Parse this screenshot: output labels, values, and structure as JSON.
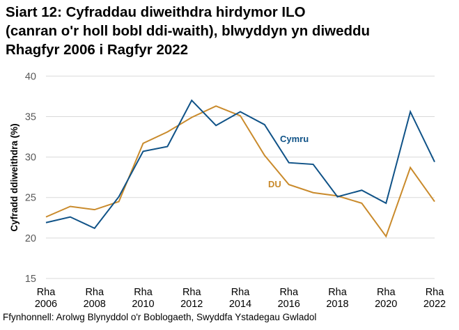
{
  "title": "Siart 12: Cyfraddau diweithdra hirdymor ILO\n(canran o'r holl bobl ddi-waith), blwyddyn yn diweddu\nRhagfyr 2006 i Ragfyr 2022",
  "source": "Ffynhonnell: Arolwg Blynyddol o'r Boblogaeth, Swyddfa Ystadegau Gwladol",
  "chart_data": {
    "type": "line",
    "title": "Siart 12: Cyfraddau diweithdra hirdymor ILO (canran o'r holl bobl ddi-waith), blwyddyn yn diweddu Rhagfyr 2006 i Ragfyr 2022",
    "xlabel": "",
    "ylabel": "Cyfradd ddiweithdra (%)",
    "ylim": [
      15,
      40
    ],
    "yticks": [
      15,
      20,
      25,
      30,
      35,
      40
    ],
    "grid": true,
    "x": [
      2006,
      2007,
      2008,
      2009,
      2010,
      2011,
      2012,
      2013,
      2014,
      2015,
      2016,
      2017,
      2018,
      2019,
      2020,
      2021,
      2022
    ],
    "xtick_labels": [
      {
        "line1": "Rha",
        "line2": "2006"
      },
      {
        "line1": "Rha",
        "line2": "2008"
      },
      {
        "line1": "Rha",
        "line2": "2010"
      },
      {
        "line1": "Rha",
        "line2": "2012"
      },
      {
        "line1": "Rha",
        "line2": "2014"
      },
      {
        "line1": "Rha",
        "line2": "2016"
      },
      {
        "line1": "Rha",
        "line2": "2018"
      },
      {
        "line1": "Rha",
        "line2": "2020"
      },
      {
        "line1": "Rha",
        "line2": "2022"
      }
    ],
    "series": [
      {
        "name": "Cymru",
        "color": "#0f5287",
        "values": [
          21.9,
          22.6,
          21.2,
          25.1,
          30.7,
          31.3,
          37.0,
          33.9,
          35.6,
          34.0,
          29.3,
          29.1,
          25.1,
          25.9,
          24.3,
          35.6,
          29.4
        ]
      },
      {
        "name": "DU",
        "color": "#c98a2b",
        "values": [
          22.6,
          23.9,
          23.5,
          24.5,
          31.7,
          33.1,
          34.9,
          36.3,
          35.1,
          30.2,
          26.6,
          25.6,
          25.2,
          24.3,
          20.2,
          28.7,
          24.5
        ]
      }
    ],
    "legend": "inline labels"
  }
}
